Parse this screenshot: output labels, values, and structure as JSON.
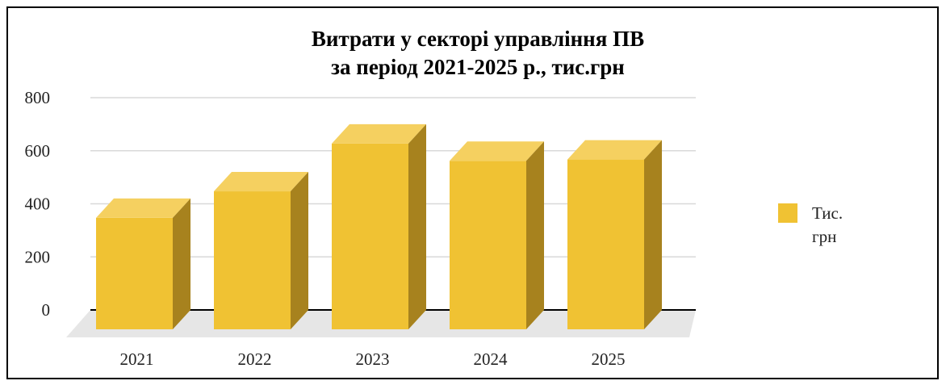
{
  "chart_data": {
    "type": "bar",
    "title_lines": [
      "Витрати у секторі управління ПВ",
      "за період 2021-2025 р., тис.грн"
    ],
    "categories": [
      "2021",
      "2022",
      "2023",
      "2024",
      "2025"
    ],
    "series": [
      {
        "name_lines": [
          "Тис.",
          "грн"
        ],
        "values": [
          420,
          520,
          700,
          635,
          640
        ]
      }
    ],
    "ylim": [
      0,
      800
    ],
    "yticks": [
      "0",
      "200",
      "400",
      "600",
      "800"
    ],
    "ytick_values": [
      0,
      200,
      400,
      600,
      800
    ],
    "grid": true,
    "legend_position": "right",
    "colors": {
      "front": "#F0C233",
      "top": "#F5D060",
      "side": "#A7821E",
      "floor": "#E6E6E6",
      "grid": "#D9D9D9",
      "axis": "#000000"
    }
  }
}
